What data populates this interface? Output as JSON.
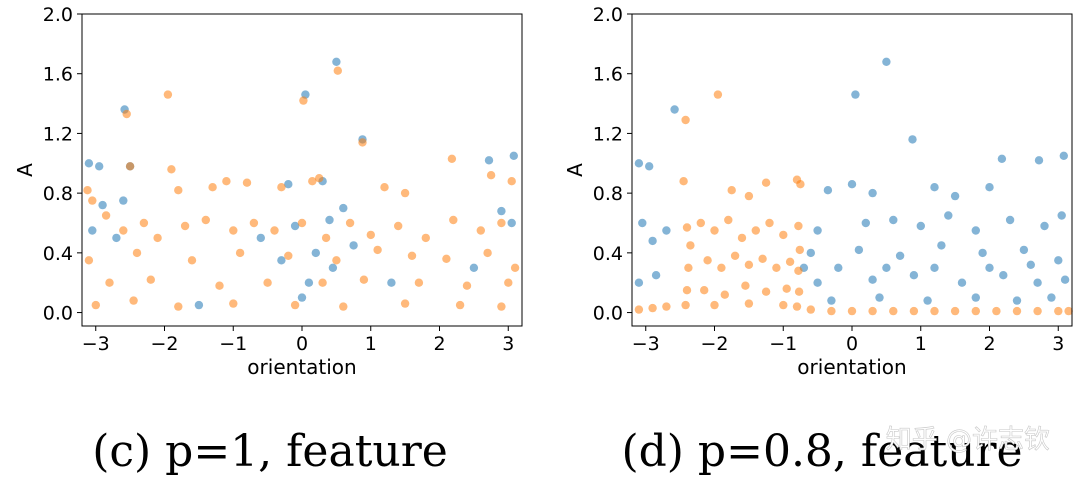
{
  "colors": {
    "blue": "#1f77b4",
    "orange": "#ff7f0e"
  },
  "watermark": "知乎 @许志钦",
  "chart_data": [
    {
      "type": "scatter",
      "caption": "(c) p=1, feature",
      "xlabel": "orientation",
      "ylabel": "A",
      "xlim": [
        -3.2,
        3.2
      ],
      "ylim": [
        -0.09,
        2.0
      ],
      "xticks": [
        -3,
        -2,
        -1,
        0,
        1,
        2,
        3
      ],
      "xticklabels": [
        "−3",
        "−2",
        "−1",
        "0",
        "1",
        "2",
        "3"
      ],
      "yticks": [
        0.0,
        0.4,
        0.8,
        1.2,
        1.6,
        2.0
      ],
      "yticklabels": [
        "0.0",
        "0.4",
        "0.8",
        "1.2",
        "1.6",
        "2.0"
      ],
      "series": [
        {
          "color": "blue",
          "points": [
            [
              -2.58,
              1.36
            ],
            [
              0.05,
              1.46
            ],
            [
              0.5,
              1.68
            ],
            [
              0.88,
              1.16
            ],
            [
              -3.1,
              1.0
            ],
            [
              -2.95,
              0.98
            ],
            [
              2.72,
              1.02
            ],
            [
              3.08,
              1.05
            ],
            [
              -2.5,
              0.98
            ],
            [
              0.3,
              0.88
            ],
            [
              -0.2,
              0.86
            ],
            [
              -2.6,
              0.75
            ],
            [
              -2.9,
              0.72
            ],
            [
              0.6,
              0.7
            ],
            [
              0.4,
              0.62
            ],
            [
              -0.1,
              0.58
            ],
            [
              -3.05,
              0.55
            ],
            [
              2.9,
              0.68
            ],
            [
              3.05,
              0.6
            ],
            [
              0.2,
              0.4
            ],
            [
              -0.3,
              0.35
            ],
            [
              0.1,
              0.2
            ],
            [
              0.45,
              0.3
            ],
            [
              2.5,
              0.3
            ],
            [
              -2.7,
              0.5
            ],
            [
              -0.6,
              0.5
            ],
            [
              0.75,
              0.45
            ],
            [
              1.3,
              0.2
            ],
            [
              0.0,
              0.1
            ],
            [
              -1.5,
              0.05
            ]
          ]
        },
        {
          "color": "orange",
          "points": [
            [
              -2.55,
              1.33
            ],
            [
              -1.95,
              1.46
            ],
            [
              0.02,
              1.42
            ],
            [
              0.52,
              1.62
            ],
            [
              0.88,
              1.14
            ],
            [
              -3.12,
              0.82
            ],
            [
              -3.05,
              0.75
            ],
            [
              -2.5,
              0.98
            ],
            [
              -1.9,
              0.96
            ],
            [
              -1.8,
              0.82
            ],
            [
              -1.3,
              0.84
            ],
            [
              -1.1,
              0.88
            ],
            [
              -0.8,
              0.87
            ],
            [
              -0.3,
              0.84
            ],
            [
              0.15,
              0.88
            ],
            [
              0.25,
              0.9
            ],
            [
              1.2,
              0.84
            ],
            [
              1.5,
              0.8
            ],
            [
              2.18,
              1.03
            ],
            [
              2.75,
              0.92
            ],
            [
              3.05,
              0.88
            ],
            [
              -2.85,
              0.65
            ],
            [
              -2.6,
              0.55
            ],
            [
              -2.3,
              0.6
            ],
            [
              -2.1,
              0.5
            ],
            [
              -1.7,
              0.58
            ],
            [
              -1.4,
              0.62
            ],
            [
              -1.0,
              0.55
            ],
            [
              -0.7,
              0.6
            ],
            [
              -0.4,
              0.55
            ],
            [
              0.0,
              0.6
            ],
            [
              0.35,
              0.5
            ],
            [
              0.7,
              0.6
            ],
            [
              1.0,
              0.52
            ],
            [
              1.4,
              0.58
            ],
            [
              1.8,
              0.5
            ],
            [
              2.2,
              0.62
            ],
            [
              2.6,
              0.55
            ],
            [
              2.9,
              0.6
            ],
            [
              -3.1,
              0.35
            ],
            [
              -2.4,
              0.4
            ],
            [
              -1.6,
              0.35
            ],
            [
              -0.9,
              0.4
            ],
            [
              -0.2,
              0.38
            ],
            [
              0.5,
              0.35
            ],
            [
              1.1,
              0.42
            ],
            [
              1.6,
              0.38
            ],
            [
              2.1,
              0.36
            ],
            [
              2.7,
              0.4
            ],
            [
              3.1,
              0.3
            ],
            [
              -2.8,
              0.2
            ],
            [
              -2.2,
              0.22
            ],
            [
              -1.2,
              0.18
            ],
            [
              -0.5,
              0.2
            ],
            [
              0.3,
              0.2
            ],
            [
              0.9,
              0.22
            ],
            [
              1.7,
              0.2
            ],
            [
              2.4,
              0.18
            ],
            [
              3.0,
              0.2
            ],
            [
              -3.0,
              0.05
            ],
            [
              -2.45,
              0.08
            ],
            [
              -1.8,
              0.04
            ],
            [
              -1.0,
              0.06
            ],
            [
              -0.1,
              0.05
            ],
            [
              0.6,
              0.04
            ],
            [
              1.5,
              0.06
            ],
            [
              2.3,
              0.05
            ],
            [
              2.9,
              0.04
            ]
          ]
        }
      ]
    },
    {
      "type": "scatter",
      "caption": "(d) p=0.8, feature",
      "xlabel": "orientation",
      "ylabel": "A",
      "xlim": [
        -3.2,
        3.2
      ],
      "ylim": [
        -0.09,
        2.0
      ],
      "xticks": [
        -3,
        -2,
        -1,
        0,
        1,
        2,
        3
      ],
      "xticklabels": [
        "−3",
        "−2",
        "−1",
        "0",
        "1",
        "2",
        "3"
      ],
      "yticks": [
        0.0,
        0.4,
        0.8,
        1.2,
        1.6,
        2.0
      ],
      "yticklabels": [
        "0.0",
        "0.4",
        "0.8",
        "1.2",
        "1.6",
        "2.0"
      ],
      "series": [
        {
          "color": "blue",
          "points": [
            [
              -2.58,
              1.36
            ],
            [
              0.05,
              1.46
            ],
            [
              0.5,
              1.68
            ],
            [
              0.88,
              1.16
            ],
            [
              -3.1,
              1.0
            ],
            [
              -2.95,
              0.98
            ],
            [
              2.18,
              1.03
            ],
            [
              2.72,
              1.02
            ],
            [
              3.08,
              1.05
            ],
            [
              -0.35,
              0.82
            ],
            [
              0.0,
              0.86
            ],
            [
              0.3,
              0.8
            ],
            [
              1.2,
              0.84
            ],
            [
              1.5,
              0.78
            ],
            [
              2.0,
              0.84
            ],
            [
              -3.05,
              0.6
            ],
            [
              -2.9,
              0.48
            ],
            [
              -2.7,
              0.55
            ],
            [
              -0.5,
              0.55
            ],
            [
              0.2,
              0.6
            ],
            [
              0.6,
              0.62
            ],
            [
              1.0,
              0.58
            ],
            [
              1.4,
              0.65
            ],
            [
              1.8,
              0.55
            ],
            [
              2.3,
              0.62
            ],
            [
              2.8,
              0.58
            ],
            [
              3.05,
              0.65
            ],
            [
              -0.6,
              0.4
            ],
            [
              0.1,
              0.42
            ],
            [
              0.7,
              0.38
            ],
            [
              1.3,
              0.45
            ],
            [
              1.9,
              0.4
            ],
            [
              2.5,
              0.42
            ],
            [
              3.0,
              0.35
            ],
            [
              -3.1,
              0.2
            ],
            [
              -2.85,
              0.25
            ],
            [
              -0.5,
              0.2
            ],
            [
              0.3,
              0.22
            ],
            [
              0.9,
              0.25
            ],
            [
              1.6,
              0.2
            ],
            [
              2.2,
              0.25
            ],
            [
              2.7,
              0.2
            ],
            [
              3.1,
              0.22
            ],
            [
              -0.3,
              0.08
            ],
            [
              0.4,
              0.1
            ],
            [
              1.1,
              0.08
            ],
            [
              1.8,
              0.1
            ],
            [
              2.4,
              0.08
            ],
            [
              2.9,
              0.1
            ],
            [
              -0.7,
              0.3
            ],
            [
              -0.2,
              0.3
            ],
            [
              0.5,
              0.3
            ],
            [
              1.2,
              0.3
            ],
            [
              2.0,
              0.3
            ],
            [
              2.6,
              0.32
            ]
          ]
        },
        {
          "color": "orange",
          "points": [
            [
              -2.42,
              1.29
            ],
            [
              -1.95,
              1.46
            ],
            [
              -2.45,
              0.88
            ],
            [
              -1.75,
              0.82
            ],
            [
              -1.5,
              0.78
            ],
            [
              -1.25,
              0.87
            ],
            [
              -0.8,
              0.89
            ],
            [
              -0.75,
              0.86
            ],
            [
              -2.4,
              0.57
            ],
            [
              -2.35,
              0.45
            ],
            [
              -2.38,
              0.3
            ],
            [
              -2.4,
              0.15
            ],
            [
              -2.42,
              0.05
            ],
            [
              -0.78,
              0.58
            ],
            [
              -0.76,
              0.42
            ],
            [
              -0.78,
              0.28
            ],
            [
              -0.77,
              0.14
            ],
            [
              -0.8,
              0.04
            ],
            [
              -2.2,
              0.6
            ],
            [
              -2.0,
              0.55
            ],
            [
              -1.8,
              0.62
            ],
            [
              -1.6,
              0.5
            ],
            [
              -1.4,
              0.55
            ],
            [
              -1.2,
              0.6
            ],
            [
              -1.0,
              0.52
            ],
            [
              -2.1,
              0.35
            ],
            [
              -1.9,
              0.3
            ],
            [
              -1.7,
              0.38
            ],
            [
              -1.5,
              0.32
            ],
            [
              -1.3,
              0.36
            ],
            [
              -1.1,
              0.3
            ],
            [
              -0.9,
              0.34
            ],
            [
              -2.15,
              0.15
            ],
            [
              -1.85,
              0.12
            ],
            [
              -1.55,
              0.18
            ],
            [
              -1.25,
              0.14
            ],
            [
              -0.95,
              0.16
            ],
            [
              -3.1,
              0.02
            ],
            [
              -2.9,
              0.03
            ],
            [
              -2.7,
              0.04
            ],
            [
              -2.0,
              0.05
            ],
            [
              -1.5,
              0.06
            ],
            [
              -1.0,
              0.05
            ],
            [
              -0.6,
              0.02
            ],
            [
              -0.3,
              0.01
            ],
            [
              0.0,
              0.01
            ],
            [
              0.3,
              0.01
            ],
            [
              0.6,
              0.01
            ],
            [
              0.9,
              0.01
            ],
            [
              1.2,
              0.01
            ],
            [
              1.5,
              0.01
            ],
            [
              1.8,
              0.01
            ],
            [
              2.1,
              0.01
            ],
            [
              2.4,
              0.01
            ],
            [
              2.7,
              0.01
            ],
            [
              3.0,
              0.01
            ],
            [
              3.15,
              0.01
            ]
          ]
        }
      ]
    }
  ]
}
